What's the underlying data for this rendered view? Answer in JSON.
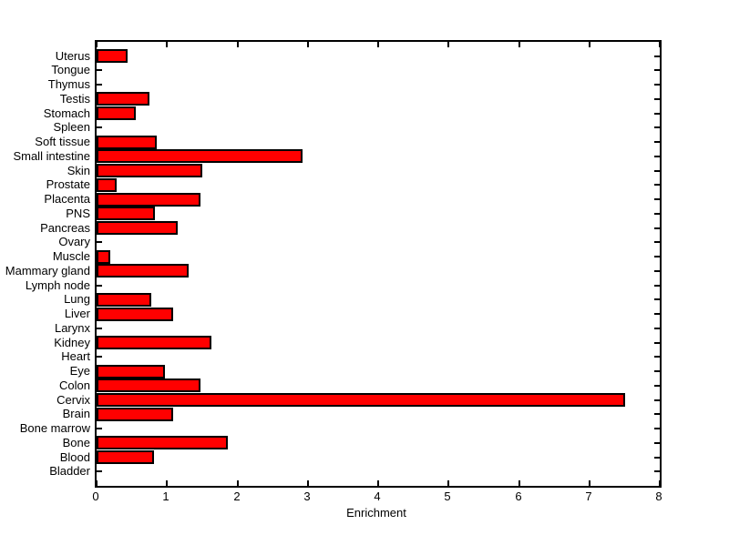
{
  "figure": {
    "background_color": "#ffffff",
    "axis_color": "#000000"
  },
  "chart_data": {
    "type": "bar",
    "orientation": "horizontal",
    "title": "",
    "xlabel": "Enrichment",
    "ylabel": "",
    "xlim": [
      0,
      8
    ],
    "xticks": [
      "0",
      "1",
      "2",
      "3",
      "4",
      "5",
      "6",
      "7",
      "8"
    ],
    "grid": false,
    "bar_color": "#ff0000",
    "bar_edge_color": "#000000",
    "categories_top_to_bottom": [
      "Uterus",
      "Tongue",
      "Thymus",
      "Testis",
      "Stomach",
      "Spleen",
      "Soft tissue",
      "Small intestine",
      "Skin",
      "Prostate",
      "Placenta",
      "PNS",
      "Pancreas",
      "Ovary",
      "Muscle",
      "Mammary gland",
      "Lymph node",
      "Lung",
      "Liver",
      "Larynx",
      "Kidney",
      "Heart",
      "Eye",
      "Colon",
      "Cervix",
      "Brain",
      "Bone marrow",
      "Bone",
      "Blood",
      "Bladder"
    ],
    "values_top_to_bottom": [
      0.44,
      0,
      0,
      0.75,
      0.56,
      0,
      0.86,
      2.92,
      1.5,
      0.29,
      1.47,
      0.83,
      1.15,
      0,
      0.2,
      1.31,
      0,
      0.78,
      1.09,
      0,
      1.63,
      0,
      0.97,
      1.48,
      7.51,
      1.09,
      0,
      1.87,
      0.82,
      0
    ]
  }
}
